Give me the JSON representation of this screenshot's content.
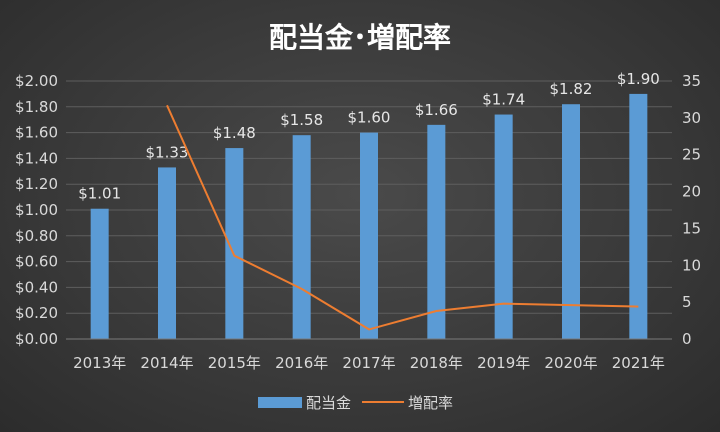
{
  "chart_data": {
    "type": "bar+line",
    "title": "配当金･増配率",
    "categories": [
      "2013年",
      "2014年",
      "2015年",
      "2016年",
      "2017年",
      "2018年",
      "2019年",
      "2020年",
      "2021年"
    ],
    "series": [
      {
        "name": "配当金",
        "type": "bar",
        "axis": "left",
        "values": [
          1.01,
          1.33,
          1.48,
          1.58,
          1.6,
          1.66,
          1.74,
          1.82,
          1.9
        ],
        "labels": [
          "$1.01",
          "$1.33",
          "$1.48",
          "$1.58",
          "$1.60",
          "$1.66",
          "$1.74",
          "$1.82",
          "$1.90"
        ],
        "color": "#5b9bd5"
      },
      {
        "name": "増配率",
        "type": "line",
        "axis": "right",
        "values": [
          null,
          31.7,
          11.3,
          6.8,
          1.3,
          3.8,
          4.8,
          4.6,
          4.4
        ],
        "color": "#ed7d31"
      }
    ],
    "y_left": {
      "min": 0,
      "max": 2.0,
      "ticks": [
        "$0.00",
        "$0.20",
        "$0.40",
        "$0.60",
        "$0.80",
        "$1.00",
        "$1.20",
        "$1.40",
        "$1.60",
        "$1.80",
        "$2.00"
      ]
    },
    "y_right": {
      "min": 0,
      "max": 35,
      "ticks": [
        "0",
        "5",
        "10",
        "15",
        "20",
        "25",
        "30",
        "35"
      ]
    },
    "grid": true,
    "legend": "bottom-center"
  }
}
